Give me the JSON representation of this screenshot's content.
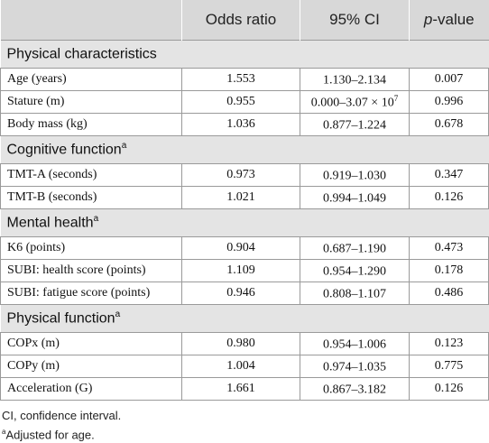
{
  "header": {
    "col1": "",
    "col2": "Odds ratio",
    "col3": "95% CI",
    "col4_italic": "p",
    "col4_rest": "-value"
  },
  "sections": [
    {
      "title": "Physical characteristics",
      "sup": "",
      "rows": [
        {
          "label": "Age (years)",
          "or": "1.553",
          "ci": "1.130–2.134",
          "ci_sup": "",
          "p": "0.007"
        },
        {
          "label": "Stature (m)",
          "or": "0.955",
          "ci": "0.000–3.07 × 10",
          "ci_sup": "7",
          "p": "0.996"
        },
        {
          "label": "Body mass (kg)",
          "or": "1.036",
          "ci": "0.877–1.224",
          "ci_sup": "",
          "p": "0.678"
        }
      ]
    },
    {
      "title": "Cognitive function",
      "sup": "a",
      "rows": [
        {
          "label": "TMT-A (seconds)",
          "or": "0.973",
          "ci": "0.919–1.030",
          "ci_sup": "",
          "p": "0.347"
        },
        {
          "label": "TMT-B (seconds)",
          "or": "1.021",
          "ci": "0.994–1.049",
          "ci_sup": "",
          "p": "0.126"
        }
      ]
    },
    {
      "title": "Mental health",
      "sup": "a",
      "rows": [
        {
          "label": "K6 (points)",
          "or": "0.904",
          "ci": "0.687–1.190",
          "ci_sup": "",
          "p": "0.473"
        },
        {
          "label": "SUBI: health score (points)",
          "or": "1.109",
          "ci": "0.954–1.290",
          "ci_sup": "",
          "p": "0.178"
        },
        {
          "label": "SUBI: fatigue score (points)",
          "or": "0.946",
          "ci": "0.808–1.107",
          "ci_sup": "",
          "p": "0.486"
        }
      ]
    },
    {
      "title": "Physical function",
      "sup": "a",
      "rows": [
        {
          "label": "COPx (m)",
          "or": "0.980",
          "ci": "0.954–1.006",
          "ci_sup": "",
          "p": "0.123"
        },
        {
          "label": "COPy (m)",
          "or": "1.004",
          "ci": "0.974–1.035",
          "ci_sup": "",
          "p": "0.775"
        },
        {
          "label": "Acceleration (G)",
          "or": "1.661",
          "ci": "0.867–3.182",
          "ci_sup": "",
          "p": "0.126"
        }
      ]
    }
  ],
  "notes": {
    "line1": "CI, confidence interval.",
    "line2_sup": "a",
    "line2": "Adjusted for age."
  }
}
